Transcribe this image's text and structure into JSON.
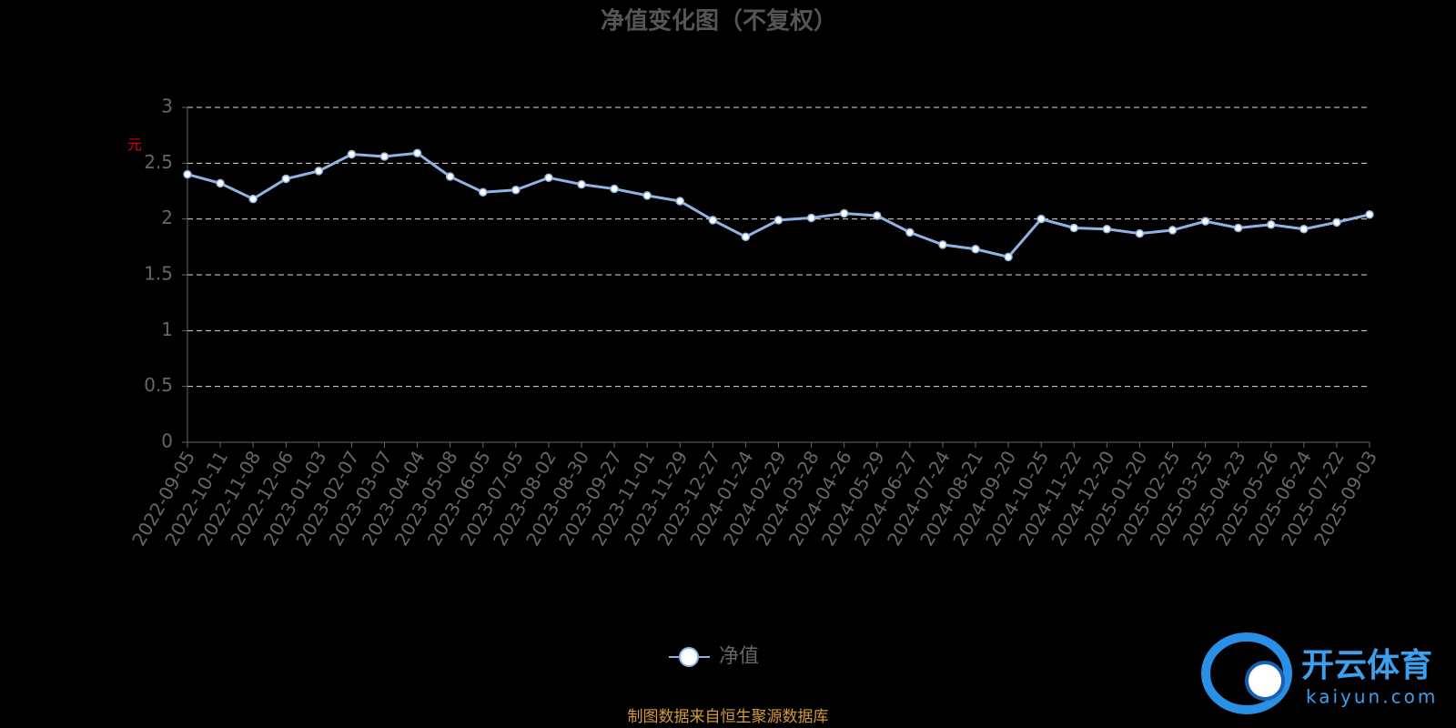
{
  "chart_data": {
    "type": "line",
    "title": "净值变化图（不复权）",
    "y_label": "元",
    "categories": [
      "2022-09-05",
      "2022-10-11",
      "2022-11-08",
      "2022-12-06",
      "2023-01-03",
      "2023-02-07",
      "2023-03-07",
      "2023-04-04",
      "2023-05-08",
      "2023-06-05",
      "2023-07-05",
      "2023-08-02",
      "2023-08-30",
      "2023-09-27",
      "2023-11-01",
      "2023-11-29",
      "2023-12-27",
      "2024-01-24",
      "2024-02-29",
      "2024-03-28",
      "2024-04-26",
      "2024-05-29",
      "2024-06-27",
      "2024-07-24",
      "2024-08-21",
      "2024-09-20",
      "2024-10-25",
      "2024-11-22",
      "2024-12-20",
      "2025-01-20",
      "2025-02-25",
      "2025-03-25",
      "2025-04-23",
      "2025-05-26",
      "2025-06-24",
      "2025-07-22",
      "2025-09-03"
    ],
    "series": [
      {
        "name": "净值",
        "color": "#8fb4e3",
        "values": [
          2.4,
          2.32,
          2.18,
          2.36,
          2.43,
          2.58,
          2.56,
          2.59,
          2.38,
          2.24,
          2.26,
          2.37,
          2.31,
          2.27,
          2.21,
          2.16,
          1.99,
          1.84,
          1.99,
          2.01,
          2.05,
          2.03,
          1.88,
          1.77,
          1.73,
          1.66,
          2.0,
          1.92,
          1.91,
          1.87,
          1.9,
          1.98,
          1.92,
          1.95,
          1.91,
          1.97,
          2.04
        ]
      }
    ],
    "ylim": [
      0,
      3
    ],
    "yticks": [
      0,
      0.5,
      1,
      1.5,
      2,
      2.5,
      3
    ],
    "grid": true,
    "source": "制图数据来自恒生聚源数据库",
    "watermark": {
      "brand": "开云体育",
      "site": "kaiyun.com"
    }
  }
}
